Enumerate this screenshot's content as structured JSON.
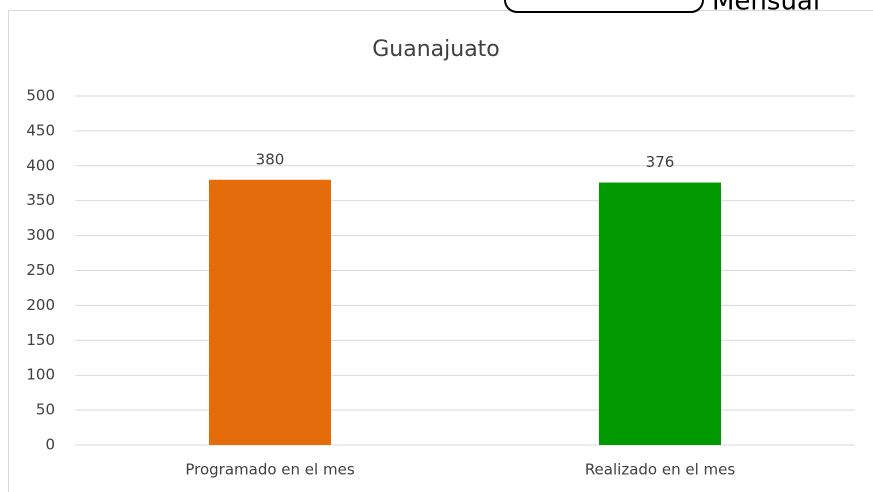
{
  "chart_data": {
    "type": "bar",
    "title": "Guanajuato",
    "annotation": "Mensual",
    "categories": [
      "Programado en el mes",
      "Realizado en el mes"
    ],
    "values": [
      380,
      376
    ],
    "colors": [
      "#e46c0a",
      "#009900"
    ],
    "ylim": [
      0,
      500
    ],
    "yticks": [
      0,
      50,
      100,
      150,
      200,
      250,
      300,
      350,
      400,
      450,
      500
    ],
    "grid": true
  }
}
